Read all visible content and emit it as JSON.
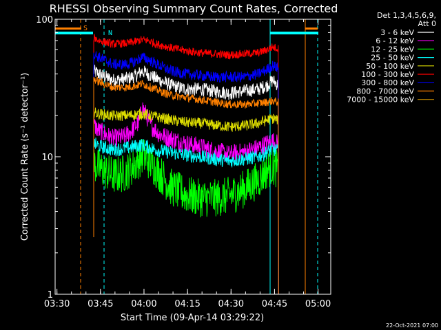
{
  "chart_data": {
    "type": "line",
    "title": "RHESSI Observing Summary Count Rates, Corrected",
    "xlabel": "Start Time (09-Apr-14 03:29:22)",
    "ylabel": "Corrected Count Rate (s⁻¹ detector⁻¹)",
    "yscale": "log",
    "ylim": [
      1,
      100
    ],
    "xlim_minutes": [
      0,
      95
    ],
    "x_ticks": [
      {
        "label": "03:30",
        "minute": 0.63
      },
      {
        "label": "03:45",
        "minute": 15.63
      },
      {
        "label": "04:00",
        "minute": 30.63
      },
      {
        "label": "04:15",
        "minute": 45.63
      },
      {
        "label": "04:30",
        "minute": 60.63
      },
      {
        "label": "04:45",
        "minute": 75.63
      },
      {
        "label": "05:00",
        "minute": 90.63
      }
    ],
    "y_ticks": [
      {
        "label": "1",
        "value": 1
      },
      {
        "label": "10",
        "value": 10
      },
      {
        "label": "100",
        "value": 100
      }
    ],
    "legend_header": [
      "Det 1,3,4,5,6,9,",
      "Att 0"
    ],
    "legend_placement": "right",
    "series": [
      {
        "name": "3 - 6 keV",
        "color": "#ffffff",
        "points": [
          [
            13.3,
            42
          ],
          [
            15,
            40
          ],
          [
            20,
            36
          ],
          [
            25,
            37
          ],
          [
            28,
            39
          ],
          [
            30,
            42
          ],
          [
            32,
            40
          ],
          [
            36,
            36
          ],
          [
            40,
            33
          ],
          [
            45,
            31
          ],
          [
            50,
            31
          ],
          [
            55,
            30
          ],
          [
            60,
            29
          ],
          [
            65,
            30
          ],
          [
            70,
            31
          ],
          [
            73,
            33
          ],
          [
            75,
            36
          ],
          [
            77,
            33
          ]
        ]
      },
      {
        "name": "6 - 12 keV",
        "color": "#ff00ff",
        "points": [
          [
            13.3,
            17
          ],
          [
            15,
            15.5
          ],
          [
            20,
            13.5
          ],
          [
            24,
            14
          ],
          [
            27,
            16
          ],
          [
            29,
            18
          ],
          [
            30,
            23
          ],
          [
            31,
            21
          ],
          [
            33,
            17
          ],
          [
            36,
            14.5
          ],
          [
            40,
            13.5
          ],
          [
            45,
            12.5
          ],
          [
            50,
            11.8
          ],
          [
            55,
            11
          ],
          [
            60,
            10.4
          ],
          [
            65,
            10.8
          ],
          [
            70,
            11.6
          ],
          [
            73,
            12.5
          ],
          [
            75,
            13
          ],
          [
            77,
            12.3
          ]
        ]
      },
      {
        "name": "12 - 25 keV",
        "color": "#00ff00",
        "points": [
          [
            13.3,
            9
          ],
          [
            15,
            8.3
          ],
          [
            20,
            7.3
          ],
          [
            24,
            7.6
          ],
          [
            27,
            8.6
          ],
          [
            29,
            9.6
          ],
          [
            30,
            10.2
          ],
          [
            32,
            9.5
          ],
          [
            36,
            7.6
          ],
          [
            40,
            6
          ],
          [
            45,
            5.3
          ],
          [
            50,
            5
          ],
          [
            55,
            5
          ],
          [
            60,
            5.2
          ],
          [
            65,
            5.8
          ],
          [
            70,
            6.8
          ],
          [
            73,
            8
          ],
          [
            75,
            8.5
          ],
          [
            77,
            8
          ]
        ]
      },
      {
        "name": "25 - 50 keV",
        "color": "#00ffff",
        "points": [
          [
            13.3,
            12.5
          ],
          [
            15,
            12
          ],
          [
            20,
            11.2
          ],
          [
            25,
            11.6
          ],
          [
            30,
            12.2
          ],
          [
            35,
            11.2
          ],
          [
            40,
            10.7
          ],
          [
            45,
            10.3
          ],
          [
            50,
            10
          ],
          [
            55,
            9.6
          ],
          [
            60,
            9.3
          ],
          [
            65,
            9.6
          ],
          [
            70,
            10
          ],
          [
            73,
            10.8
          ],
          [
            75,
            11.3
          ],
          [
            77,
            11
          ]
        ]
      },
      {
        "name": "50 - 100 keV",
        "color": "#dddd00",
        "points": [
          [
            13.3,
            21
          ],
          [
            15,
            20.5
          ],
          [
            20,
            19.8
          ],
          [
            25,
            20
          ],
          [
            30,
            20.5
          ],
          [
            35,
            19.5
          ],
          [
            40,
            18.5
          ],
          [
            45,
            17.8
          ],
          [
            50,
            17.5
          ],
          [
            55,
            17
          ],
          [
            60,
            16.5
          ],
          [
            65,
            16.8
          ],
          [
            70,
            17.5
          ],
          [
            73,
            18.5
          ],
          [
            75,
            19
          ],
          [
            77,
            18.5
          ]
        ]
      },
      {
        "name": "100 - 300 keV",
        "color": "#ff0000",
        "points": [
          [
            13.3,
            74
          ],
          [
            15,
            70
          ],
          [
            20,
            66
          ],
          [
            25,
            67
          ],
          [
            28,
            69
          ],
          [
            30,
            71
          ],
          [
            32,
            70
          ],
          [
            35,
            66
          ],
          [
            40,
            62
          ],
          [
            45,
            59
          ],
          [
            50,
            57
          ],
          [
            55,
            56
          ],
          [
            60,
            55
          ],
          [
            65,
            56
          ],
          [
            70,
            57
          ],
          [
            73,
            60
          ],
          [
            75,
            63
          ],
          [
            77,
            61
          ]
        ]
      },
      {
        "name": "300 - 800 keV",
        "color": "#0000ff",
        "points": [
          [
            13.3,
            56
          ],
          [
            15,
            53
          ],
          [
            20,
            47
          ],
          [
            25,
            47
          ],
          [
            28,
            50
          ],
          [
            30,
            53
          ],
          [
            32,
            51
          ],
          [
            36,
            46
          ],
          [
            40,
            42
          ],
          [
            45,
            40
          ],
          [
            50,
            39
          ],
          [
            55,
            38
          ],
          [
            60,
            38
          ],
          [
            65,
            38
          ],
          [
            70,
            40
          ],
          [
            73,
            43
          ],
          [
            75,
            46
          ],
          [
            77,
            44
          ]
        ]
      },
      {
        "name": "800 - 7000 keV",
        "color": "#ff8000",
        "points": [
          [
            13.3,
            37
          ],
          [
            15,
            35
          ],
          [
            20,
            32
          ],
          [
            25,
            32
          ],
          [
            28,
            33
          ],
          [
            30,
            34
          ],
          [
            33,
            32
          ],
          [
            36,
            30
          ],
          [
            40,
            28
          ],
          [
            45,
            27
          ],
          [
            50,
            26
          ],
          [
            55,
            25
          ],
          [
            60,
            24
          ],
          [
            65,
            24
          ],
          [
            70,
            24.5
          ],
          [
            73,
            25
          ],
          [
            75,
            25.5
          ],
          [
            77,
            25
          ]
        ]
      },
      {
        "name": "7000 - 15000 keV",
        "color": "#aa7700",
        "points": []
      }
    ],
    "markers": [
      {
        "label": "S",
        "color": "#ff8000"
      },
      {
        "label": "N",
        "color": "#00ffff"
      }
    ],
    "footer": "22-Oct-2021 07:00"
  }
}
